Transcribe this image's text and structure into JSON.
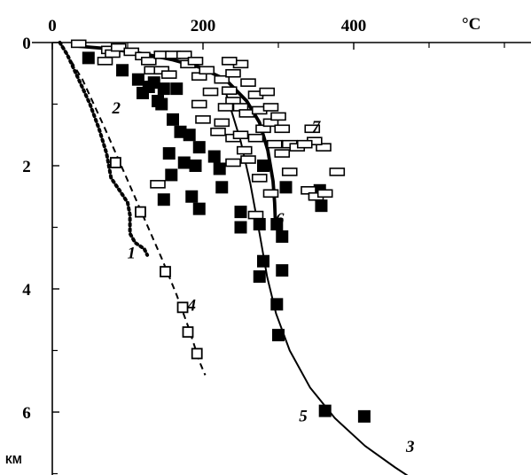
{
  "chart_data": {
    "type": "scatter",
    "title": "",
    "x_unit": "°C",
    "y_unit": "КМ",
    "xlim": [
      0,
      600
    ],
    "ylim": [
      0,
      7
    ],
    "y_inverted": true,
    "x_axis_position": "top",
    "x_ticks": [
      0,
      200,
      400
    ],
    "y_ticks": [
      0,
      2,
      4,
      6
    ],
    "grid": false,
    "legend": "none",
    "curve_labels": [
      {
        "id": "1",
        "text": "1",
        "x": 105,
        "y": 3.4
      },
      {
        "id": "2",
        "text": "2",
        "x": 85,
        "y": 1.05
      },
      {
        "id": "3",
        "text": "3",
        "x": 475,
        "y": 6.55
      },
      {
        "id": "4",
        "text": "4",
        "x": 185,
        "y": 4.25
      },
      {
        "id": "5",
        "text": "5",
        "x": 333,
        "y": 6.05
      },
      {
        "id": "6",
        "text": "6",
        "x": 302,
        "y": 2.85
      },
      {
        "id": "7",
        "text": "7",
        "x": 350,
        "y": 1.35
      }
    ],
    "series": [
      {
        "id": "curve-1",
        "style": "dotted",
        "points": [
          [
            10,
            0
          ],
          [
            20,
            0.2
          ],
          [
            35,
            0.6
          ],
          [
            50,
            1.0
          ],
          [
            62,
            1.4
          ],
          [
            72,
            1.8
          ],
          [
            78,
            2.2
          ],
          [
            92,
            2.45
          ],
          [
            100,
            2.6
          ],
          [
            103,
            2.8
          ],
          [
            103,
            3.1
          ],
          [
            110,
            3.25
          ],
          [
            122,
            3.35
          ],
          [
            126,
            3.45
          ]
        ]
      },
      {
        "id": "curve-2",
        "style": "dashed",
        "points": [
          [
            10,
            0
          ],
          [
            40,
            0.6
          ],
          [
            70,
            1.4
          ],
          [
            95,
            2.1
          ],
          [
            120,
            2.8
          ],
          [
            145,
            3.5
          ],
          [
            165,
            4.1
          ],
          [
            180,
            4.6
          ],
          [
            196,
            5.2
          ],
          [
            203,
            5.4
          ]
        ]
      },
      {
        "id": "curve-3",
        "style": "solid",
        "points": [
          [
            230,
            0.8
          ],
          [
            250,
            1.6
          ],
          [
            263,
            2.3
          ],
          [
            275,
            3.1
          ],
          [
            285,
            3.8
          ],
          [
            297,
            4.4
          ],
          [
            315,
            5.0
          ],
          [
            342,
            5.6
          ],
          [
            375,
            6.1
          ],
          [
            415,
            6.55
          ],
          [
            455,
            6.9
          ],
          [
            480,
            7.1
          ]
        ]
      },
      {
        "id": "curve-6",
        "style": "solid-bold",
        "points": [
          [
            25,
            0.05
          ],
          [
            75,
            0.1
          ],
          [
            120,
            0.18
          ],
          [
            160,
            0.28
          ],
          [
            195,
            0.4
          ],
          [
            230,
            0.6
          ],
          [
            258,
            0.95
          ],
          [
            275,
            1.3
          ],
          [
            286,
            1.75
          ],
          [
            293,
            2.25
          ],
          [
            295,
            2.6
          ],
          [
            296,
            2.9
          ]
        ]
      },
      {
        "id": "points-4",
        "marker": "open-square",
        "points": [
          [
            84,
            1.95
          ],
          [
            117,
            2.75
          ],
          [
            150,
            3.72
          ],
          [
            173,
            4.3
          ],
          [
            180,
            4.7
          ],
          [
            192,
            5.05
          ]
        ]
      },
      {
        "id": "points-5",
        "marker": "filled-square",
        "points": [
          [
            48,
            0.25
          ],
          [
            93,
            0.45
          ],
          [
            114,
            0.6
          ],
          [
            120,
            0.82
          ],
          [
            128,
            0.72
          ],
          [
            135,
            0.65
          ],
          [
            140,
            0.95
          ],
          [
            148,
            0.75
          ],
          [
            145,
            1.0
          ],
          [
            165,
            0.75
          ],
          [
            160,
            1.25
          ],
          [
            170,
            1.45
          ],
          [
            182,
            1.5
          ],
          [
            155,
            1.8
          ],
          [
            158,
            2.15
          ],
          [
            148,
            2.55
          ],
          [
            175,
            1.95
          ],
          [
            190,
            2.0
          ],
          [
            195,
            1.7
          ],
          [
            215,
            1.85
          ],
          [
            222,
            2.05
          ],
          [
            225,
            2.35
          ],
          [
            185,
            2.5
          ],
          [
            195,
            2.7
          ],
          [
            250,
            2.75
          ],
          [
            250,
            3.0
          ],
          [
            275,
            2.95
          ],
          [
            298,
            2.95
          ],
          [
            305,
            3.15
          ],
          [
            280,
            3.55
          ],
          [
            275,
            3.8
          ],
          [
            305,
            3.7
          ],
          [
            298,
            4.25
          ],
          [
            300,
            4.75
          ],
          [
            280,
            2.0
          ],
          [
            310,
            2.35
          ],
          [
            348,
            2.45
          ],
          [
            355,
            2.4
          ],
          [
            357,
            2.65
          ],
          [
            362,
            5.98
          ],
          [
            414,
            6.07
          ]
        ]
      },
      {
        "id": "points-7",
        "marker": "open-rect",
        "points": [
          [
            35,
            0.02
          ],
          [
            75,
            0.12
          ],
          [
            70,
            0.3
          ],
          [
            80,
            0.18
          ],
          [
            88,
            0.08
          ],
          [
            105,
            0.15
          ],
          [
            120,
            0.22
          ],
          [
            128,
            0.3
          ],
          [
            132,
            0.45
          ],
          [
            145,
            0.45
          ],
          [
            155,
            0.52
          ],
          [
            145,
            0.2
          ],
          [
            160,
            0.2
          ],
          [
            175,
            0.2
          ],
          [
            180,
            0.35
          ],
          [
            190,
            0.3
          ],
          [
            195,
            0.55
          ],
          [
            205,
            0.45
          ],
          [
            210,
            0.8
          ],
          [
            225,
            0.6
          ],
          [
            235,
            0.78
          ],
          [
            240,
            0.95
          ],
          [
            230,
            1.05
          ],
          [
            250,
            1.05
          ],
          [
            258,
            1.15
          ],
          [
            260,
            0.65
          ],
          [
            240,
            0.5
          ],
          [
            270,
            0.85
          ],
          [
            275,
            1.1
          ],
          [
            285,
            0.8
          ],
          [
            280,
            1.4
          ],
          [
            290,
            1.3
          ],
          [
            290,
            1.05
          ],
          [
            305,
            1.4
          ],
          [
            300,
            1.2
          ],
          [
            195,
            1.0
          ],
          [
            200,
            1.25
          ],
          [
            225,
            1.3
          ],
          [
            220,
            1.45
          ],
          [
            240,
            1.55
          ],
          [
            250,
            1.5
          ],
          [
            270,
            1.55
          ],
          [
            295,
            1.65
          ],
          [
            305,
            1.8
          ],
          [
            315,
            1.65
          ],
          [
            325,
            1.7
          ],
          [
            255,
            1.75
          ],
          [
            260,
            1.9
          ],
          [
            240,
            1.95
          ],
          [
            275,
            2.2
          ],
          [
            290,
            2.45
          ],
          [
            315,
            2.1
          ],
          [
            340,
            2.4
          ],
          [
            350,
            2.5
          ],
          [
            362,
            2.45
          ],
          [
            360,
            1.7
          ],
          [
            378,
            2.1
          ],
          [
            345,
            1.4
          ],
          [
            348,
            1.6
          ],
          [
            335,
            1.65
          ],
          [
            270,
            2.8
          ],
          [
            140,
            2.3
          ],
          [
            250,
            0.35
          ],
          [
            235,
            0.3
          ]
        ]
      }
    ]
  }
}
